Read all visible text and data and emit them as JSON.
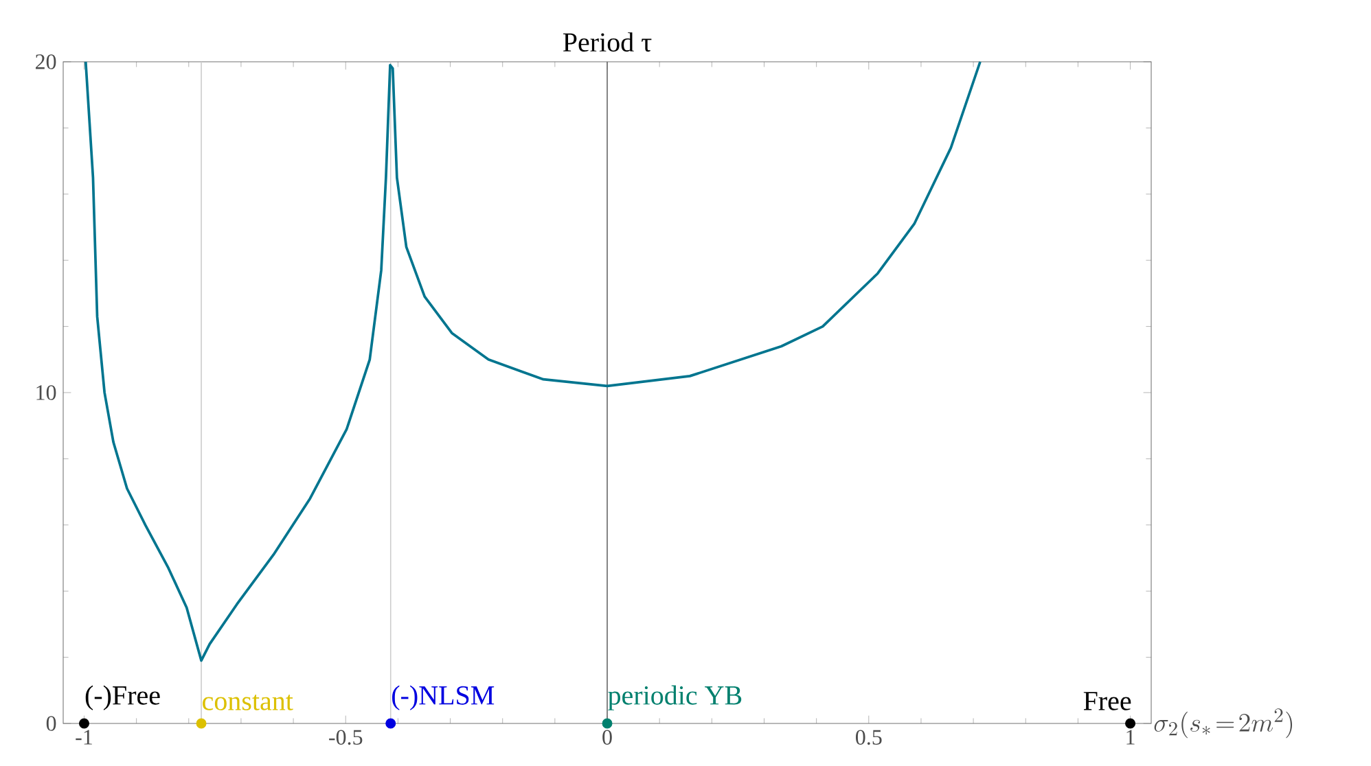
{
  "chart_data": {
    "type": "line",
    "title": "Period τ",
    "xlabel": "\\sigma_2(s_*\\!=\\!2m^2)",
    "xlim": [
      -1.04,
      1.04
    ],
    "ylim": [
      0,
      20
    ],
    "xticks": [
      -1,
      -0.5,
      0,
      0.5,
      1
    ],
    "yticks": [
      0,
      10,
      20
    ],
    "ref_lines": [
      {
        "axis": "x",
        "value": -0.776,
        "color": "#cccccc"
      },
      {
        "axis": "x",
        "value": -0.414,
        "color": "#cccccc"
      },
      {
        "axis": "x",
        "value": 0,
        "color": "#666666"
      }
    ],
    "series": [
      {
        "color": "#00758f",
        "marker": "none",
        "x": [
          -0.997,
          -0.983,
          -0.975,
          -0.961,
          -0.944,
          -0.918,
          -0.883,
          -0.839,
          -0.804,
          -0.776,
          -0.76,
          -0.708,
          -0.638,
          -0.568,
          -0.498,
          -0.454,
          -0.432,
          -0.423,
          -0.415,
          -0.41,
          -0.402,
          -0.384,
          -0.349,
          -0.297,
          -0.227,
          -0.122,
          0,
          0.158,
          0.333,
          0.412,
          0.517,
          0.587,
          0.657,
          0.713
        ],
        "values": [
          20,
          16.5,
          12.3,
          10.0,
          8.5,
          7.1,
          6.0,
          4.7,
          3.5,
          1.9,
          2.4,
          3.6,
          5.1,
          6.8,
          8.9,
          11.0,
          13.7,
          16.5,
          19.9,
          19.8,
          16.5,
          14.4,
          12.9,
          11.8,
          11.0,
          10.4,
          10.2,
          10.5,
          11.4,
          12.0,
          13.6,
          15.1,
          17.4,
          20
        ]
      },
      {
        "type": "scatter",
        "name": "(-)Free",
        "color": "#000000",
        "marker": "circle",
        "x": [
          -1
        ],
        "values": [
          0
        ]
      },
      {
        "type": "scatter",
        "name": "constant",
        "color": "#dcc000",
        "marker": "circle",
        "x": [
          -0.776
        ],
        "values": [
          0
        ]
      },
      {
        "type": "scatter",
        "name": "(-)NLSM",
        "color": "#0000e0",
        "marker": "circle",
        "x": [
          -0.414
        ],
        "values": [
          0
        ]
      },
      {
        "type": "scatter",
        "name": "periodic YB",
        "color": "#00806e",
        "marker": "circle",
        "x": [
          0
        ],
        "values": [
          0
        ]
      },
      {
        "type": "scatter",
        "name": "Free",
        "color": "#000000",
        "marker": "circle",
        "x": [
          1
        ],
        "values": [
          0
        ]
      }
    ]
  }
}
